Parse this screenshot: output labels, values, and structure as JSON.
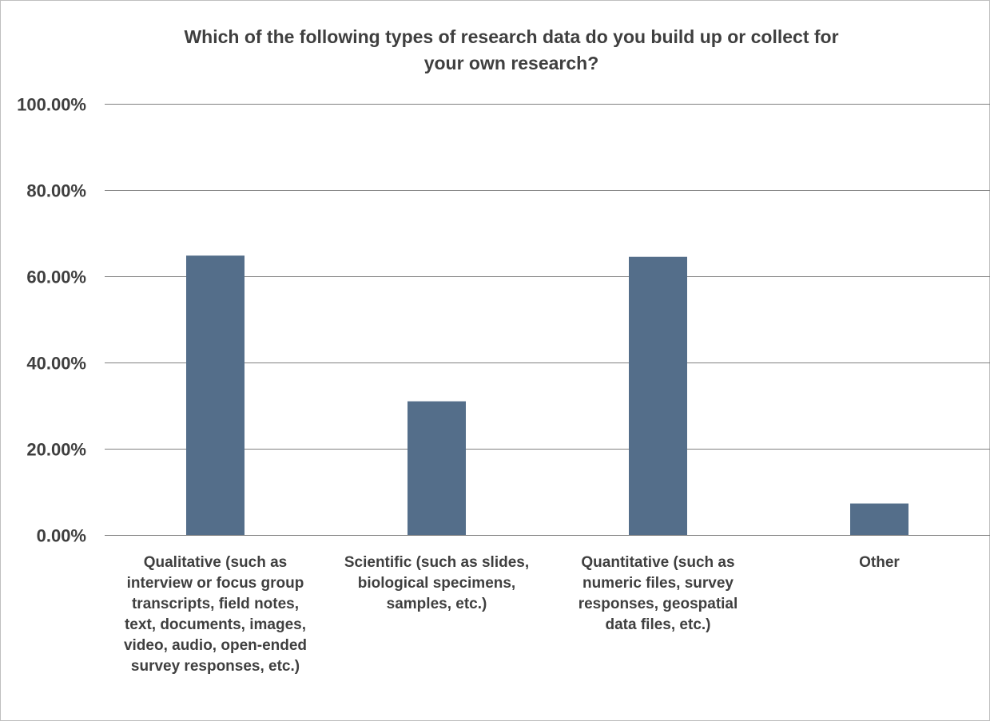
{
  "chart_data": {
    "type": "bar",
    "title_lines": [
      "Which of the following types of research data do you build up or collect for",
      "your own research?"
    ],
    "xlabel": "",
    "ylabel": "",
    "ylim": [
      0,
      1
    ],
    "y_ticks": [
      0,
      0.2,
      0.4,
      0.6,
      0.8,
      1.0
    ],
    "y_tick_labels": [
      "0.00%",
      "20.00%",
      "40.00%",
      "60.00%",
      "80.00%",
      "100.00%"
    ],
    "grid": true,
    "legend": "none",
    "categories": [
      "Qualitative (such as interview or focus group transcripts, field notes, text, documents, images, video, audio, open-ended survey responses, etc.)",
      "Scientific (such as slides, biological specimens, samples, etc.)",
      "Quantitative (such as numeric files, survey responses, geospatial data files, etc.)",
      "Other"
    ],
    "category_label_lines": [
      [
        "Qualitative (such as",
        "interview or focus group",
        "transcripts, field notes,",
        "text, documents, images,",
        "video, audio, open-ended",
        "survey responses, etc.)"
      ],
      [
        "Scientific (such as slides,",
        "biological specimens,",
        "samples, etc.)"
      ],
      [
        "Quantitative (such as",
        "numeric files, survey",
        "responses, geospatial",
        "data files, etc.)"
      ],
      [
        "Other"
      ]
    ],
    "values": [
      0.648,
      0.31,
      0.645,
      0.073
    ],
    "bar_color": "#546e8a",
    "grid_color": "#808080"
  }
}
